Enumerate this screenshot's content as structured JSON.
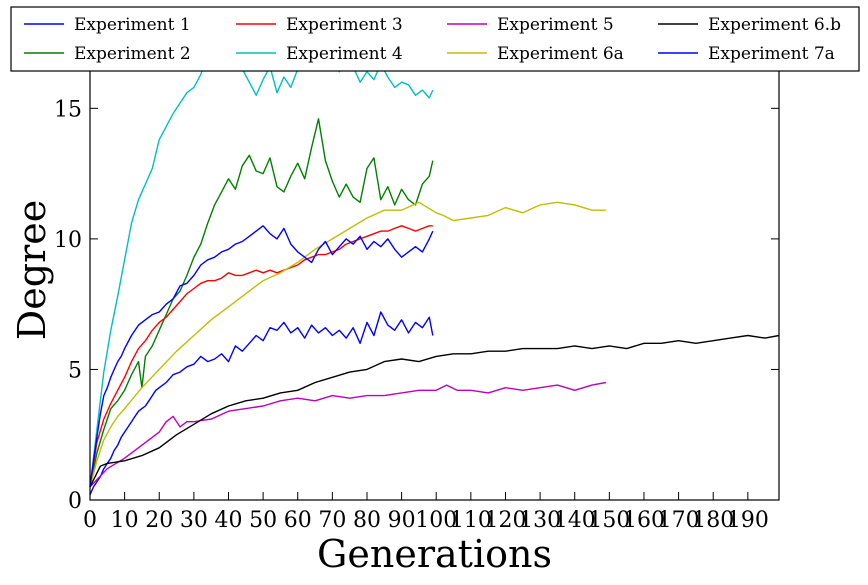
{
  "chart_data": {
    "type": "line",
    "title": "",
    "xlabel": "Generations",
    "ylabel": "Degree",
    "xlim": [
      0,
      199
    ],
    "ylim": [
      0,
      18
    ],
    "x_ticks": [
      0,
      10,
      20,
      30,
      40,
      50,
      60,
      70,
      80,
      90,
      100,
      110,
      120,
      130,
      140,
      150,
      160,
      170,
      180,
      190
    ],
    "x_tick_labels": [
      "0",
      "10",
      "20",
      "30",
      "40",
      "50",
      "60",
      "70",
      "80",
      "90",
      "100",
      "110",
      "120",
      "130",
      "140",
      "150",
      "160",
      "170",
      "180",
      "190"
    ],
    "y_ticks": [
      0,
      5,
      10,
      15
    ],
    "y_tick_labels": [
      "0",
      "5",
      "10",
      "15"
    ],
    "grid": false,
    "legend_position": "top",
    "series": [
      {
        "name": "Experiment 1",
        "color": "#0000ff",
        "x": [
          0,
          1,
          2,
          3,
          4,
          5,
          6,
          7,
          8,
          9,
          10,
          11,
          12,
          13,
          14,
          15,
          16,
          17,
          18,
          19,
          20,
          22,
          24,
          26,
          28,
          30,
          32,
          34,
          36,
          38,
          40,
          42,
          44,
          46,
          48,
          50,
          52,
          54,
          56,
          58,
          60,
          62,
          64,
          66,
          68,
          70,
          72,
          74,
          76,
          78,
          80,
          82,
          84,
          86,
          88,
          90,
          92,
          94,
          96,
          98,
          99
        ],
        "y": [
          0.2,
          0.5,
          0.7,
          0.9,
          1.2,
          1.4,
          1.6,
          1.9,
          2.1,
          2.4,
          2.6,
          2.8,
          3.0,
          3.2,
          3.4,
          3.5,
          3.6,
          3.8,
          4.0,
          4.2,
          4.3,
          4.5,
          4.8,
          4.9,
          5.1,
          5.2,
          5.5,
          5.3,
          5.4,
          5.6,
          5.3,
          5.9,
          5.7,
          6.0,
          6.3,
          6.1,
          6.6,
          6.5,
          6.8,
          6.4,
          6.6,
          6.2,
          6.7,
          6.4,
          6.6,
          6.3,
          6.5,
          6.2,
          6.6,
          6.0,
          6.8,
          6.3,
          7.2,
          6.7,
          6.5,
          6.9,
          6.4,
          6.8,
          6.6,
          7.0,
          6.3
        ]
      },
      {
        "name": "Experiment 2",
        "color": "#008000",
        "x": [
          0,
          2,
          4,
          6,
          8,
          10,
          12,
          14,
          15,
          16,
          18,
          20,
          22,
          24,
          26,
          28,
          30,
          32,
          34,
          36,
          38,
          40,
          42,
          44,
          46,
          48,
          50,
          52,
          54,
          56,
          58,
          60,
          62,
          64,
          66,
          68,
          70,
          72,
          74,
          76,
          78,
          80,
          82,
          84,
          86,
          88,
          90,
          92,
          94,
          96,
          98,
          99
        ],
        "y": [
          0.5,
          1.8,
          2.7,
          3.5,
          3.8,
          4.2,
          4.8,
          5.3,
          4.3,
          5.5,
          5.9,
          6.5,
          7.1,
          7.7,
          8.0,
          8.6,
          9.3,
          9.8,
          10.6,
          11.3,
          11.8,
          12.3,
          11.9,
          12.8,
          13.2,
          12.6,
          12.5,
          13.1,
          12.0,
          11.8,
          12.4,
          12.9,
          12.3,
          13.5,
          14.6,
          13.0,
          12.2,
          11.6,
          12.1,
          11.6,
          11.4,
          12.7,
          13.1,
          11.5,
          12.0,
          11.3,
          11.9,
          11.5,
          11.3,
          12.1,
          12.4,
          13.0
        ]
      },
      {
        "name": "Experiment 3",
        "color": "#ff0000",
        "x": [
          0,
          2,
          4,
          6,
          8,
          10,
          12,
          14,
          16,
          18,
          20,
          22,
          24,
          26,
          28,
          30,
          32,
          34,
          36,
          38,
          40,
          42,
          44,
          46,
          48,
          50,
          52,
          54,
          56,
          58,
          60,
          62,
          64,
          66,
          68,
          70,
          72,
          74,
          76,
          78,
          80,
          82,
          84,
          86,
          88,
          90,
          92,
          94,
          96,
          98,
          99
        ],
        "y": [
          0.5,
          2.2,
          3.1,
          3.7,
          4.2,
          4.7,
          5.3,
          5.8,
          6.1,
          6.5,
          6.8,
          7.0,
          7.3,
          7.6,
          7.9,
          8.1,
          8.3,
          8.4,
          8.4,
          8.5,
          8.7,
          8.6,
          8.6,
          8.7,
          8.8,
          8.7,
          8.8,
          8.7,
          8.8,
          8.9,
          9.0,
          9.2,
          9.3,
          9.4,
          9.4,
          9.5,
          9.6,
          9.8,
          9.9,
          10.0,
          10.1,
          10.2,
          10.3,
          10.3,
          10.4,
          10.5,
          10.4,
          10.3,
          10.4,
          10.5,
          10.5
        ]
      },
      {
        "name": "Experiment 4",
        "color": "#00bfbf",
        "x": [
          0,
          2,
          4,
          6,
          8,
          10,
          12,
          14,
          16,
          18,
          20,
          22,
          24,
          26,
          28,
          30,
          32,
          34,
          36,
          38,
          40,
          42,
          44,
          46,
          48,
          50,
          52,
          54,
          56,
          58,
          60,
          62,
          64,
          65,
          66,
          68,
          70,
          72,
          74,
          76,
          78,
          80,
          82,
          84,
          86,
          88,
          90,
          92,
          94,
          96,
          98,
          99
        ],
        "y": [
          0.5,
          2.7,
          4.9,
          6.5,
          7.8,
          9.2,
          10.6,
          11.5,
          12.1,
          12.7,
          13.8,
          14.3,
          14.8,
          15.2,
          15.6,
          15.8,
          16.3,
          17.0,
          17.4,
          17.2,
          17.6,
          17.0,
          16.5,
          16.0,
          15.5,
          16.1,
          16.6,
          15.6,
          16.2,
          15.8,
          16.5,
          16.9,
          17.4,
          18.0,
          17.6,
          16.6,
          16.8,
          16.4,
          16.9,
          16.6,
          16.0,
          16.4,
          16.1,
          16.7,
          16.2,
          15.8,
          16.0,
          15.9,
          15.5,
          15.7,
          15.4,
          15.7
        ]
      },
      {
        "name": "Experiment 5",
        "color": "#bf00bf",
        "x": [
          0,
          5,
          10,
          15,
          20,
          22,
          24,
          26,
          28,
          30,
          35,
          40,
          45,
          50,
          55,
          60,
          65,
          70,
          75,
          80,
          85,
          90,
          95,
          100,
          103,
          106,
          110,
          115,
          120,
          125,
          130,
          135,
          140,
          145,
          149
        ],
        "y": [
          0.5,
          1.2,
          1.6,
          2.1,
          2.6,
          3.0,
          3.2,
          2.8,
          3.0,
          3.0,
          3.1,
          3.4,
          3.5,
          3.6,
          3.8,
          3.9,
          3.8,
          4.0,
          3.9,
          4.0,
          4.0,
          4.1,
          4.2,
          4.2,
          4.4,
          4.2,
          4.2,
          4.1,
          4.3,
          4.2,
          4.3,
          4.4,
          4.2,
          4.4,
          4.5
        ]
      },
      {
        "name": "Experiment 6a",
        "color": "#bfbf00",
        "x": [
          0,
          2,
          4,
          6,
          8,
          10,
          15,
          20,
          25,
          30,
          35,
          40,
          45,
          50,
          55,
          60,
          65,
          70,
          75,
          80,
          85,
          90,
          95,
          100,
          102,
          105,
          110,
          115,
          120,
          125,
          130,
          135,
          140,
          145,
          149
        ],
        "y": [
          0.5,
          1.5,
          2.3,
          2.8,
          3.2,
          3.5,
          4.3,
          5.0,
          5.7,
          6.3,
          6.9,
          7.4,
          7.9,
          8.4,
          8.7,
          9.1,
          9.6,
          10.0,
          10.4,
          10.8,
          11.1,
          11.1,
          11.4,
          11.0,
          10.9,
          10.7,
          10.8,
          10.9,
          11.2,
          11.0,
          11.3,
          11.4,
          11.3,
          11.1,
          11.1
        ]
      },
      {
        "name": "Experiment 6.b",
        "color": "#000000",
        "x": [
          0,
          3,
          5,
          10,
          15,
          20,
          25,
          30,
          35,
          40,
          45,
          50,
          55,
          60,
          65,
          70,
          75,
          80,
          85,
          90,
          95,
          100,
          105,
          110,
          115,
          120,
          125,
          130,
          135,
          140,
          145,
          150,
          155,
          160,
          165,
          170,
          175,
          180,
          185,
          190,
          195,
          199
        ],
        "y": [
          0.5,
          1.3,
          1.4,
          1.5,
          1.7,
          2.0,
          2.5,
          2.9,
          3.3,
          3.6,
          3.8,
          3.9,
          4.1,
          4.2,
          4.5,
          4.7,
          4.9,
          5.0,
          5.3,
          5.4,
          5.3,
          5.5,
          5.6,
          5.6,
          5.7,
          5.7,
          5.8,
          5.8,
          5.8,
          5.9,
          5.8,
          5.9,
          5.8,
          6.0,
          6.0,
          6.1,
          6.0,
          6.1,
          6.2,
          6.3,
          6.2,
          6.3
        ]
      },
      {
        "name": "Experiment 7a",
        "color": "#0000ff",
        "x": [
          0,
          1,
          2,
          3,
          4,
          5,
          6,
          7,
          8,
          9,
          10,
          12,
          14,
          16,
          18,
          20,
          22,
          24,
          26,
          28,
          30,
          32,
          34,
          36,
          38,
          40,
          42,
          44,
          46,
          48,
          50,
          52,
          54,
          56,
          58,
          60,
          62,
          64,
          66,
          68,
          70,
          72,
          74,
          76,
          78,
          80,
          82,
          84,
          86,
          88,
          90,
          92,
          94,
          96,
          98,
          99
        ],
        "y": [
          0.5,
          1.5,
          2.4,
          3.3,
          4.0,
          4.3,
          4.7,
          5.0,
          5.3,
          5.5,
          5.8,
          6.3,
          6.7,
          6.9,
          7.1,
          7.2,
          7.5,
          7.7,
          8.2,
          8.3,
          8.6,
          9.0,
          9.2,
          9.3,
          9.5,
          9.6,
          9.8,
          9.9,
          10.1,
          10.3,
          10.5,
          10.2,
          10.0,
          10.4,
          9.8,
          9.5,
          9.3,
          9.1,
          9.6,
          9.9,
          9.4,
          9.7,
          10.0,
          9.8,
          10.1,
          9.6,
          9.9,
          9.7,
          10.0,
          9.6,
          9.3,
          9.5,
          9.7,
          9.5,
          10.0,
          10.3
        ]
      }
    ]
  }
}
